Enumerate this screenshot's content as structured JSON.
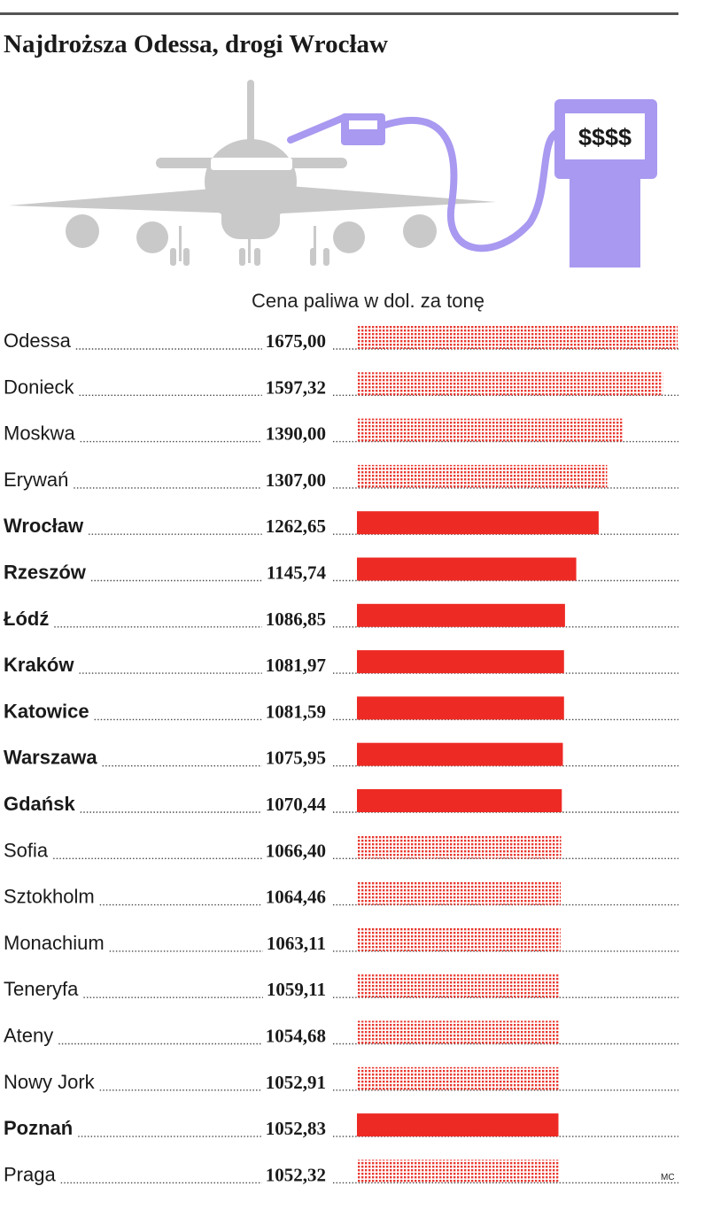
{
  "title": "Najdroższa Odessa, drogi Wrocław",
  "illustration": {
    "pump_sign": "$$$$",
    "colors": {
      "plane": "#c9c9c9",
      "pump": "#a999f0"
    }
  },
  "credit": "MC",
  "colors": {
    "highlight": "#ee2a24",
    "other": "#e8382f"
  },
  "chart_data": {
    "type": "bar",
    "orientation": "horizontal",
    "title": "Cena paliwa w dol. za tonę",
    "categories": [
      "Odessa",
      "Donieck",
      "Moskwa",
      "Erywań",
      "Wrocław",
      "Rzeszów",
      "Łódź",
      "Kraków",
      "Katowice",
      "Warszawa",
      "Gdańsk",
      "Sofia",
      "Sztokholm",
      "Monachium",
      "Teneryfa",
      "Ateny",
      "Nowy Jork",
      "Poznań",
      "Praga"
    ],
    "values": [
      1675.0,
      1597.32,
      1390.0,
      1307.0,
      1262.65,
      1145.74,
      1086.85,
      1081.97,
      1081.59,
      1075.95,
      1070.44,
      1066.4,
      1064.46,
      1063.11,
      1059.11,
      1054.68,
      1052.91,
      1052.83,
      1052.32
    ],
    "value_labels": [
      "1675,00",
      "1597,32",
      "1390,00",
      "1307,00",
      "1262,65",
      "1145,74",
      "1086,85",
      "1081,97",
      "1081,59",
      "1075,95",
      "1070,44",
      "1066,40",
      "1064,46",
      "1063,11",
      "1059,11",
      "1054,68",
      "1052,91",
      "1052,83",
      "1052,32"
    ],
    "highlighted": [
      false,
      false,
      false,
      false,
      true,
      true,
      true,
      true,
      true,
      true,
      true,
      false,
      false,
      false,
      false,
      false,
      false,
      true,
      false
    ],
    "highlight_style": "solid bars and bold labels for Polish cities; dotted bars for others",
    "xlabel": "",
    "ylabel": "",
    "grid": false
  }
}
